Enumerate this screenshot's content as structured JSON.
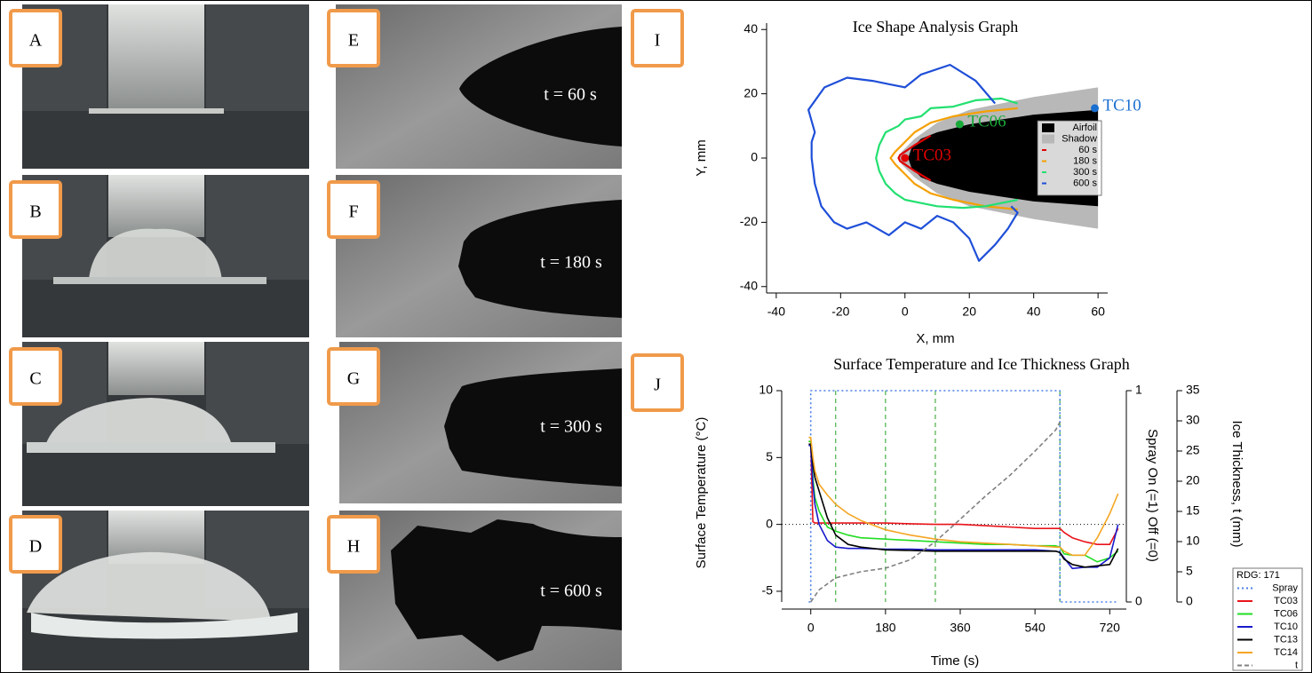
{
  "photos": [
    {
      "label": "A"
    },
    {
      "label": "B"
    },
    {
      "label": "C"
    },
    {
      "label": "D"
    },
    {
      "label": "E",
      "caption": "t = 60 s"
    },
    {
      "label": "F",
      "caption": "t = 180 s"
    },
    {
      "label": "G",
      "caption": "t = 300 s"
    },
    {
      "label": "H",
      "caption": "t = 600 s"
    }
  ],
  "chart_data": [
    {
      "type": "line",
      "panel": "I",
      "title": "Ice Shape Analysis Graph",
      "x_label": "X, mm",
      "y_label": "Y, mm",
      "xlim": [
        -43,
        63
      ],
      "ylim": [
        -42,
        42
      ],
      "xticks": [
        -40,
        -20,
        0,
        20,
        40,
        60
      ],
      "yticks": [
        -40,
        -20,
        0,
        20,
        40
      ],
      "series": [
        {
          "name": "Airfoil",
          "color": "#000000",
          "fill": true,
          "x": [
            60,
            40,
            20,
            10,
            5,
            2,
            1,
            2,
            5,
            10,
            20,
            40,
            60
          ],
          "values": [
            15,
            13.5,
            10.5,
            8,
            6,
            3,
            0,
            -3,
            -6,
            -8,
            -10.5,
            -13.5,
            -15
          ]
        },
        {
          "name": "Shadow",
          "color": "#b8b8b8",
          "fill": true,
          "x": [
            60,
            40,
            20,
            10,
            3,
            -1,
            -2,
            -1,
            3,
            10,
            20,
            40,
            60
          ],
          "values": [
            22,
            19,
            15,
            11,
            6,
            2,
            0,
            -2,
            -6,
            -11,
            -15,
            -19,
            -22
          ]
        },
        {
          "name": "60 s",
          "color": "#e00000",
          "x": [
            8,
            3,
            0,
            -1.5,
            -2,
            -1.5,
            0,
            3,
            8
          ],
          "values": [
            7,
            4,
            2,
            1,
            0,
            -1,
            -2,
            -4,
            -7
          ]
        },
        {
          "name": "180 s",
          "color": "#f5a000",
          "x": [
            35,
            25,
            15,
            8,
            3,
            0,
            -3,
            -4.5,
            -3,
            0,
            3,
            8,
            15,
            25,
            35
          ],
          "values": [
            15.5,
            14.5,
            13,
            11,
            8,
            5,
            2,
            0,
            -2,
            -5,
            -8,
            -11,
            -13,
            -15,
            -16
          ]
        },
        {
          "name": "300 s",
          "color": "#22e070",
          "x": [
            35,
            30,
            22,
            15,
            8,
            5,
            0,
            -2,
            -6,
            -8,
            -9,
            -8,
            -6,
            -3,
            0,
            5,
            10,
            18,
            25,
            30,
            35
          ],
          "values": [
            17,
            18.5,
            18,
            16,
            15.5,
            13,
            12,
            10,
            8,
            4,
            0,
            -4,
            -8,
            -11,
            -13,
            -14,
            -15,
            -15.5,
            -15,
            -14,
            -13
          ]
        },
        {
          "name": "600 s",
          "color": "#1f4fd8",
          "x": [
            28,
            22,
            14,
            5,
            0,
            -5,
            -10,
            -18,
            -25,
            -30,
            -28,
            -29,
            -29,
            -28,
            -26,
            -22,
            -18,
            -12,
            -5,
            0,
            5,
            10,
            15,
            20,
            23,
            28,
            32,
            35,
            33
          ],
          "values": [
            17,
            24,
            29,
            26,
            22,
            23,
            24,
            25,
            22,
            15,
            8,
            5,
            0,
            -8,
            -15,
            -20,
            -22,
            -20,
            -24,
            -20,
            -22,
            -18,
            -20,
            -25,
            -32,
            -27,
            -22,
            -17,
            -15
          ]
        }
      ],
      "points": [
        {
          "name": "TC03",
          "color": "#e00000",
          "x": 0,
          "y": 0
        },
        {
          "name": "TC06",
          "color": "#1aaa3a",
          "x": 17,
          "y": 10.5
        },
        {
          "name": "TC10",
          "color": "#1a6fd0",
          "x": 59,
          "y": 15.5
        }
      ]
    },
    {
      "type": "line",
      "panel": "J",
      "title": "Surface Temperature and Ice Thickness Graph",
      "x_label": "Time (s)",
      "y_label": "Surface Temperature (°C)",
      "y2_label": "Spray On (=1) Off (=0)",
      "y3_label": "Ice Thickness, t (mm)",
      "xlim": [
        -70,
        760
      ],
      "ylim": [
        -5.8,
        10
      ],
      "y2lim": [
        0,
        1
      ],
      "y3lim": [
        0,
        35
      ],
      "xticks": [
        0,
        180,
        360,
        540,
        720
      ],
      "yticks": [
        -5,
        0,
        5,
        10
      ],
      "y2ticks": [
        0,
        1
      ],
      "y3ticks": [
        0,
        5,
        10,
        15,
        20,
        25,
        30,
        35
      ],
      "vlines": [
        60,
        180,
        300,
        600
      ],
      "vline_color": "#22a022",
      "hline": 0,
      "legend_title": "RDG: 171",
      "series": [
        {
          "name": "Spray",
          "color": "#4a7ee8",
          "dash": "dot",
          "axis": "y2",
          "x": [
            -5,
            0,
            0,
            600,
            600,
            740
          ],
          "values": [
            0,
            0,
            1,
            1,
            0,
            0
          ]
        },
        {
          "name": "TC03",
          "color": "#e8141a",
          "x": [
            -5,
            0,
            5,
            10,
            20,
            40,
            60,
            90,
            120,
            180,
            240,
            300,
            360,
            420,
            480,
            540,
            590,
            600,
            610,
            630,
            660,
            690,
            720,
            740
          ],
          "values": [
            6.2,
            6.2,
            0.2,
            0.1,
            0.1,
            0.1,
            0.1,
            0.1,
            0.1,
            0.1,
            0.05,
            0,
            0,
            -0.1,
            -0.2,
            -0.3,
            -0.3,
            -0.3,
            -0.6,
            -1.0,
            -1.3,
            -1.5,
            -1.5,
            -0.3
          ]
        },
        {
          "name": "TC06",
          "color": "#22dd22",
          "x": [
            -5,
            0,
            5,
            10,
            20,
            40,
            60,
            90,
            120,
            180,
            240,
            300,
            360,
            420,
            480,
            540,
            590,
            600,
            610,
            630,
            660,
            690,
            720,
            740
          ],
          "values": [
            6.2,
            6.2,
            3.5,
            2,
            1,
            -0.2,
            -0.5,
            -0.8,
            -1,
            -1.1,
            -1.2,
            -1.3,
            -1.4,
            -1.5,
            -1.5,
            -1.6,
            -1.6,
            -1.7,
            -2.2,
            -2.3,
            -2.3,
            -2.8,
            -2.5,
            -2
          ]
        },
        {
          "name": "TC10",
          "color": "#1a1acc",
          "x": [
            -5,
            0,
            5,
            10,
            20,
            40,
            60,
            90,
            120,
            180,
            240,
            300,
            360,
            420,
            480,
            540,
            590,
            600,
            610,
            630,
            660,
            690,
            720,
            740
          ],
          "values": [
            5.9,
            5.9,
            3,
            1.5,
            0,
            -1.2,
            -1.7,
            -1.8,
            -1.8,
            -1.85,
            -1.85,
            -1.9,
            -1.9,
            -1.9,
            -1.9,
            -1.9,
            -2,
            -2.1,
            -2.5,
            -3.3,
            -3.2,
            -3.2,
            -2.5,
            0
          ]
        },
        {
          "name": "TC13",
          "color": "#000000",
          "x": [
            -5,
            0,
            5,
            10,
            20,
            40,
            60,
            90,
            120,
            180,
            240,
            300,
            360,
            420,
            480,
            540,
            590,
            600,
            610,
            630,
            660,
            690,
            720,
            740
          ],
          "values": [
            6.0,
            6.0,
            4.5,
            3.5,
            2.5,
            0.5,
            -0.8,
            -1.5,
            -1.7,
            -1.9,
            -1.95,
            -2,
            -2,
            -2,
            -2,
            -2,
            -2,
            -2.1,
            -2.6,
            -3.0,
            -3.2,
            -3.1,
            -3.0,
            -1.8
          ]
        },
        {
          "name": "TC14",
          "color": "#f5a623",
          "x": [
            -5,
            0,
            5,
            10,
            20,
            40,
            60,
            90,
            120,
            180,
            240,
            300,
            360,
            420,
            480,
            540,
            590,
            600,
            610,
            630,
            660,
            690,
            720,
            740
          ],
          "values": [
            6.5,
            6.5,
            5,
            4,
            3,
            2.2,
            1.5,
            0.8,
            0.3,
            -0.4,
            -0.8,
            -1.1,
            -1.3,
            -1.4,
            -1.5,
            -1.6,
            -1.7,
            -1.7,
            -2.0,
            -2.3,
            -2.3,
            -1.0,
            0.8,
            2.3
          ]
        },
        {
          "name": "t",
          "color": "#808080",
          "dash": "dash",
          "axis": "y3",
          "x": [
            0,
            20,
            60,
            120,
            180,
            240,
            300,
            360,
            420,
            480,
            540,
            590,
            600
          ],
          "values": [
            0,
            2,
            4,
            5,
            5.6,
            7,
            10,
            13.7,
            17.5,
            21,
            25,
            28.5,
            29.8
          ]
        }
      ]
    }
  ]
}
